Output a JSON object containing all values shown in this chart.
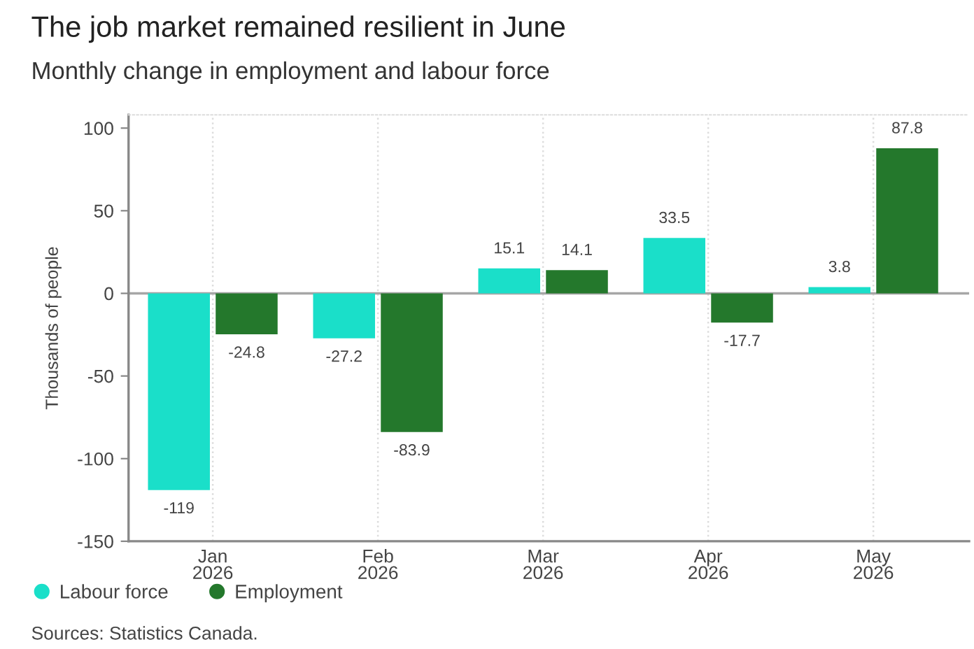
{
  "chart_data": {
    "type": "bar",
    "title": "The job market remained resilient in June",
    "subtitle": "Monthly change in employment and labour force",
    "ylabel": "Thousands of people",
    "categories": [
      "Jan\n2026",
      "Feb\n2026",
      "Mar\n2026",
      "Apr\n2026",
      "May\n2026"
    ],
    "series": [
      {
        "name": "Labour force",
        "color": "#1adfc9",
        "values": [
          -119,
          -27.2,
          15.1,
          33.5,
          3.8
        ]
      },
      {
        "name": "Employment",
        "color": "#24782c",
        "values": [
          -24.8,
          -83.9,
          14.1,
          -17.7,
          87.8
        ]
      }
    ],
    "ylim": [
      -150,
      108
    ],
    "yticks": [
      -150,
      -100,
      -50,
      0,
      50,
      100
    ],
    "ref_lines": [
      {
        "axis": "y",
        "value": 0,
        "color": "#a6a6a6"
      }
    ],
    "data_labels": true,
    "grid": "x",
    "legend": "bottom",
    "annotations": [
      "Sources: Statistics Canada."
    ]
  }
}
